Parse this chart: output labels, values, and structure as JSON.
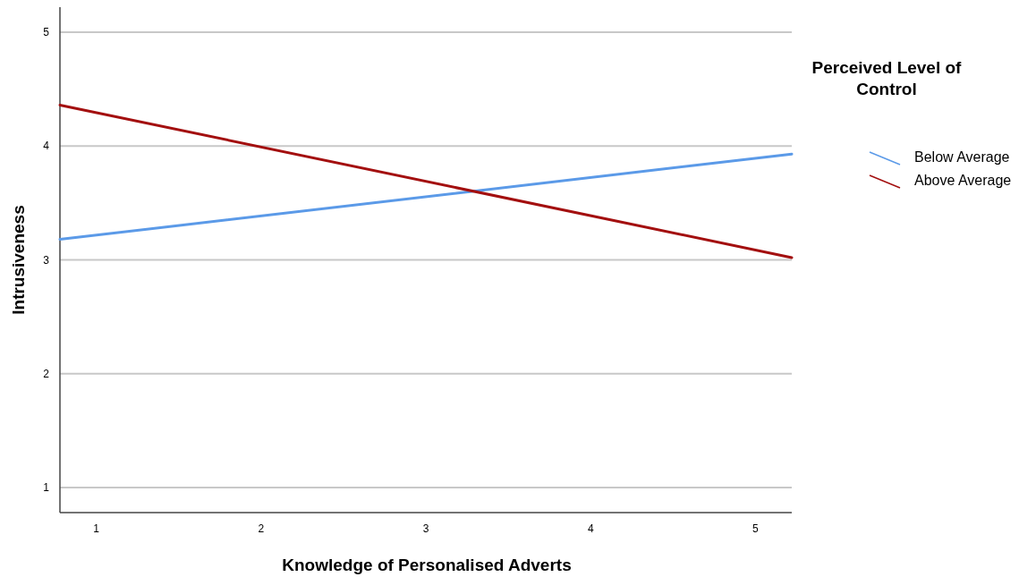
{
  "chart_data": {
    "type": "line",
    "xlabel": "Knowledge of Personalised Adverts",
    "ylabel": "Intrusiveness",
    "legend_title": "Perceived Level of Control",
    "xlim": [
      0.78,
      5.22
    ],
    "ylim": [
      0.78,
      5.22
    ],
    "xticks": [
      1,
      2,
      3,
      4,
      5
    ],
    "yticks": [
      1,
      2,
      3,
      4,
      5
    ],
    "grid": "y",
    "legend": "right",
    "x": [
      0.78,
      5.22
    ],
    "series": [
      {
        "name": "Below Average",
        "color": "#5b9ae8",
        "values": [
          3.18,
          3.93
        ]
      },
      {
        "name": "Above Average",
        "color": "#a30f0f",
        "values": [
          4.36,
          3.02
        ]
      }
    ]
  }
}
